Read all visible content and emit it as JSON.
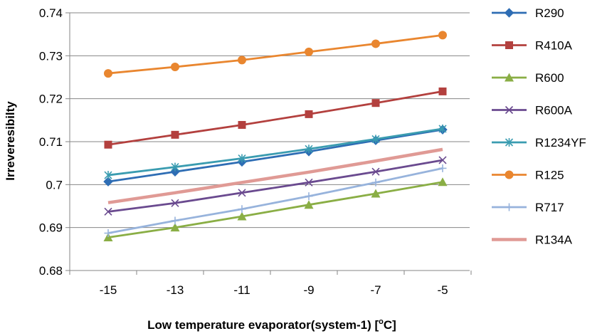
{
  "chart_data": {
    "type": "line",
    "xlabel": "Low temperature evaporator(system-1) [",
    "xlabel_sup": "o",
    "xlabel_end": "C]",
    "ylabel": "Irreveresibilty",
    "categories": [
      "-15",
      "-13",
      "-11",
      "-9",
      "-7",
      "-5"
    ],
    "y_ticks": [
      "0.68",
      "0.69",
      "0.7",
      "0.71",
      "0.72",
      "0.73",
      "0.74"
    ],
    "ylim": [
      0.68,
      0.74
    ],
    "grid": "horizontal",
    "legend_position": "right",
    "series": [
      {
        "name": "R290",
        "color": "#2e6db4",
        "marker": "diamond",
        "values": [
          0.7007,
          0.703,
          0.7053,
          0.7077,
          0.7103,
          0.7128
        ]
      },
      {
        "name": "R410A",
        "color": "#b3403e",
        "marker": "square",
        "values": [
          0.7093,
          0.7116,
          0.7139,
          0.7164,
          0.719,
          0.7217
        ]
      },
      {
        "name": "R600",
        "color": "#8aae45",
        "marker": "triangle",
        "values": [
          0.6877,
          0.69,
          0.6926,
          0.6953,
          0.6979,
          0.7006
        ]
      },
      {
        "name": "R600A",
        "color": "#6a4a8f",
        "marker": "x",
        "values": [
          0.6937,
          0.6957,
          0.6981,
          0.7005,
          0.703,
          0.7057
        ]
      },
      {
        "name": "R1234YF",
        "color": "#3a9cb0",
        "marker": "star",
        "values": [
          0.7022,
          0.7041,
          0.7061,
          0.7083,
          0.7106,
          0.713
        ]
      },
      {
        "name": "R125",
        "color": "#e9862f",
        "marker": "circle",
        "values": [
          0.7259,
          0.7274,
          0.729,
          0.7309,
          0.7328,
          0.7348
        ]
      },
      {
        "name": "R717",
        "color": "#97b3dc",
        "marker": "plus",
        "values": [
          0.6887,
          0.6916,
          0.6943,
          0.6973,
          0.7005,
          0.7038
        ]
      },
      {
        "name": "R134A",
        "color": "#e09a95",
        "marker": "none",
        "values": [
          0.6958,
          0.6981,
          0.7005,
          0.7029,
          0.7055,
          0.7082
        ]
      }
    ]
  }
}
